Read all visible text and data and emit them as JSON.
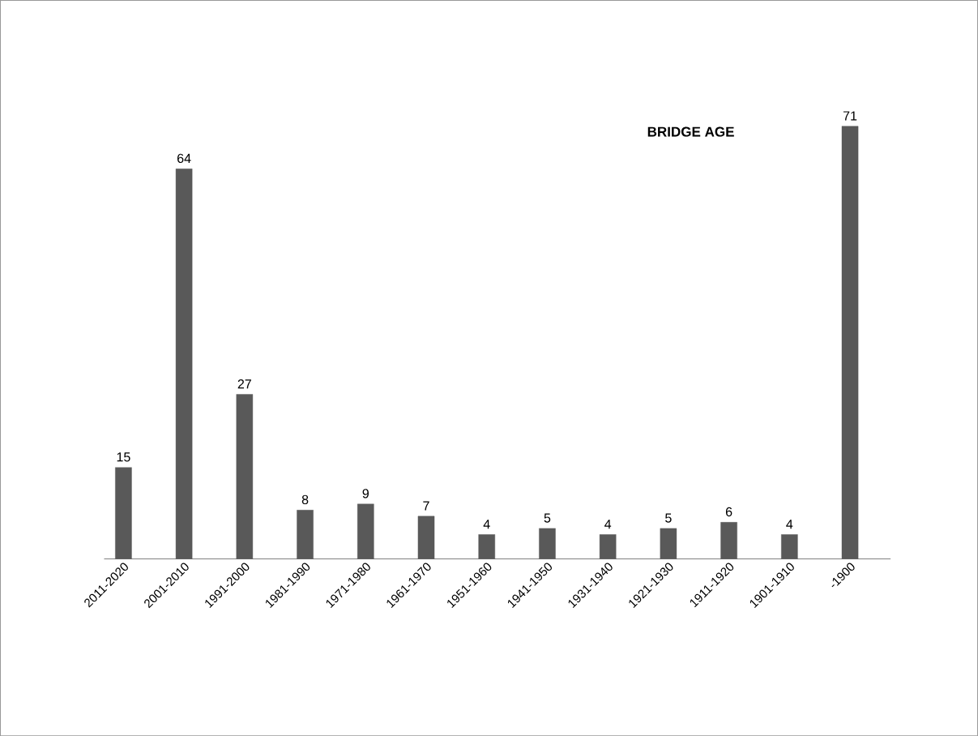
{
  "chart_data": {
    "type": "bar",
    "title": "BRIDGE AGE",
    "categories": [
      "2011-2020",
      "2001-2010",
      "1991-2000",
      "1981-1990",
      "1971-1980",
      "1961-1970",
      "1951-1960",
      "1941-1950",
      "1931-1940",
      "1921-1930",
      "1911-1920",
      "1901-1910",
      "-1900"
    ],
    "values": [
      15,
      64,
      27,
      8,
      9,
      7,
      4,
      5,
      4,
      5,
      6,
      4,
      71
    ],
    "color": "#595959",
    "data_labels": true
  }
}
